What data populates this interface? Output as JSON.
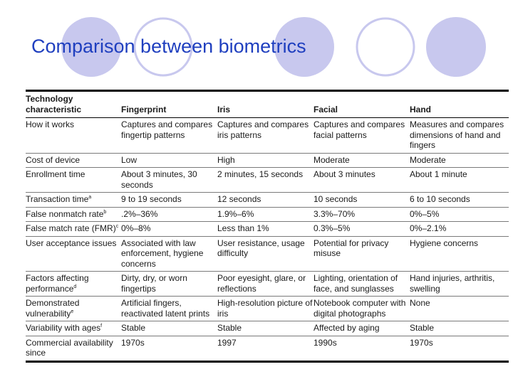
{
  "slide": {
    "title": "Comparison between biometrics",
    "colors": {
      "title": "#1f3fbf",
      "circle": "#c8c8ee",
      "rule": "#000000"
    }
  },
  "table": {
    "headers": [
      "Technology characteristic",
      "Fingerprint",
      "Iris",
      "Facial",
      "Hand"
    ],
    "rows": [
      {
        "label": "How it works",
        "note": "",
        "cells": [
          "Captures and compares fingertip patterns",
          "Captures and compares iris patterns",
          "Captures and compares facial patterns",
          "Measures and compares dimensions of hand and fingers"
        ]
      },
      {
        "label": "Cost of device",
        "note": "",
        "cells": [
          "Low",
          "High",
          "Moderate",
          "Moderate"
        ]
      },
      {
        "label": "Enrollment time",
        "note": "",
        "cells": [
          "About 3 minutes, 30 seconds",
          "2 minutes, 15 seconds",
          "About 3 minutes",
          "About 1 minute"
        ]
      },
      {
        "label": "Transaction time",
        "note": "a",
        "cells": [
          "9 to 19 seconds",
          "12 seconds",
          "10 seconds",
          "6 to 10 seconds"
        ]
      },
      {
        "label": "False nonmatch rate",
        "note": "b",
        "cells": [
          ".2%–36%",
          "1.9%–6%",
          "3.3%–70%",
          "0%–5%"
        ]
      },
      {
        "label": "False match rate (FMR)",
        "note": "c",
        "cells": [
          "0%–8%",
          "Less than 1%",
          "0.3%–5%",
          "0%–2.1%"
        ]
      },
      {
        "label": "User acceptance issues",
        "note": "",
        "cells": [
          "Associated with law enforcement, hygiene concerns",
          "User resistance, usage difficulty",
          "Potential for privacy misuse",
          "Hygiene concerns"
        ]
      },
      {
        "label": "Factors affecting performance",
        "note": "d",
        "cells": [
          "Dirty, dry, or worn fingertips",
          "Poor eyesight, glare, or reflections",
          "Lighting, orientation of face, and sunglasses",
          "Hand injuries, arthritis, swelling"
        ]
      },
      {
        "label": "Demonstrated vulnerability",
        "note": "e",
        "cells": [
          "Artificial fingers, reactivated latent prints",
          "High-resolution picture of iris",
          "Notebook computer with digital photographs",
          "None"
        ]
      },
      {
        "label": "Variability with ages",
        "note": "f",
        "cells": [
          "Stable",
          "Stable",
          "Affected by aging",
          "Stable"
        ]
      },
      {
        "label": "Commercial availability since",
        "note": "",
        "cells": [
          "1970s",
          "1997",
          "1990s",
          "1970s"
        ]
      }
    ]
  }
}
